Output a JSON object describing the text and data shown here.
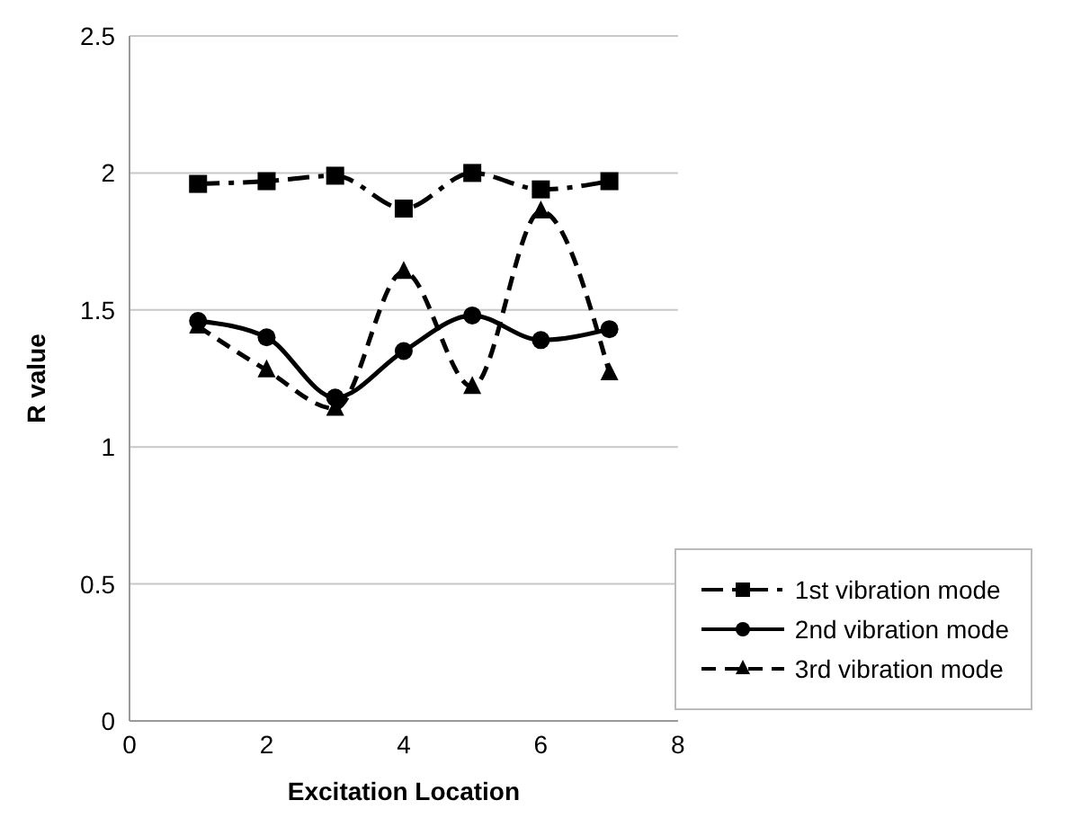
{
  "chart_data": {
    "type": "line",
    "xlabel": "Excitation Location",
    "ylabel": "R value",
    "x": [
      1,
      2,
      3,
      4,
      5,
      6,
      7
    ],
    "xlim": [
      0,
      8
    ],
    "xticks": [
      0,
      2,
      4,
      6,
      8
    ],
    "ylim": [
      0,
      2.5
    ],
    "yticks": [
      0,
      0.5,
      1,
      1.5,
      2,
      2.5
    ],
    "grid": "y",
    "legend": "bottom right",
    "series": [
      {
        "name": "1st vibration mode",
        "color": "#000000",
        "marker": "square",
        "line_style": "dashdot",
        "values": [
          1.96,
          1.97,
          1.99,
          1.87,
          2.0,
          1.94,
          1.97
        ]
      },
      {
        "name": "2nd vibration mode",
        "color": "#000000",
        "marker": "circle",
        "line_style": "solid",
        "values": [
          1.46,
          1.4,
          1.18,
          1.35,
          1.48,
          1.39,
          1.43
        ]
      },
      {
        "name": "3rd vibration mode",
        "color": "#000000",
        "marker": "triangle",
        "line_style": "dashed",
        "values": [
          1.44,
          1.28,
          1.14,
          1.64,
          1.22,
          1.86,
          1.27
        ]
      }
    ]
  }
}
